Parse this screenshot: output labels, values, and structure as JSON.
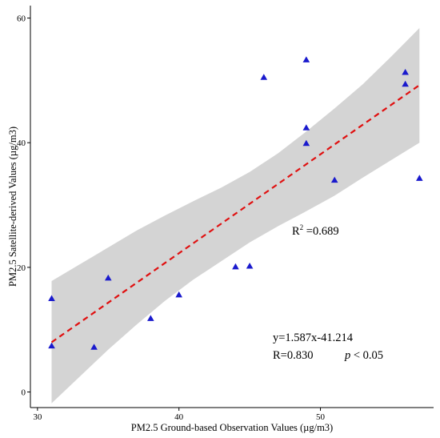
{
  "chart_data": {
    "type": "scatter",
    "xlabel": "PM2.5 Ground-based Observation Values (µg/m3)",
    "ylabel": "PM2.5 Satellite-derived Values (µg/m3)",
    "xlim": [
      29.5,
      58
    ],
    "ylim": [
      -2.5,
      62
    ],
    "xticks": [
      30,
      40,
      50
    ],
    "yticks": [
      0,
      20,
      40,
      60
    ],
    "grid": false,
    "marker": "triangle",
    "colors": {
      "points": "#1a1acd",
      "fit_line": "#e01010",
      "ci_band": "#d4d4d4"
    },
    "points": [
      {
        "x": 31,
        "y": 7.4
      },
      {
        "x": 31,
        "y": 15.0
      },
      {
        "x": 34,
        "y": 7.2
      },
      {
        "x": 35,
        "y": 18.3
      },
      {
        "x": 38,
        "y": 11.8
      },
      {
        "x": 40,
        "y": 15.6
      },
      {
        "x": 44,
        "y": 20.1
      },
      {
        "x": 45,
        "y": 20.2
      },
      {
        "x": 46,
        "y": 50.5
      },
      {
        "x": 49,
        "y": 53.3
      },
      {
        "x": 49,
        "y": 42.4
      },
      {
        "x": 49,
        "y": 39.9
      },
      {
        "x": 51,
        "y": 34.0
      },
      {
        "x": 56,
        "y": 51.3
      },
      {
        "x": 56,
        "y": 49.4
      },
      {
        "x": 57,
        "y": 34.3
      }
    ],
    "fit": {
      "slope": 1.587,
      "intercept": -41.214,
      "x_range": [
        31,
        57
      ]
    },
    "ci_band": {
      "x": [
        31,
        33,
        35,
        37,
        39,
        41,
        43,
        45,
        47,
        49,
        51,
        53,
        55,
        57
      ],
      "upper": [
        17.8,
        20.5,
        23.2,
        25.9,
        28.3,
        30.6,
        32.8,
        35.3,
        38.3,
        41.8,
        45.5,
        49.4,
        53.8,
        58.4
      ],
      "lower": [
        -1.8,
        2.5,
        6.8,
        10.8,
        14.6,
        18.0,
        21.0,
        24.0,
        26.6,
        29.0,
        31.5,
        34.4,
        37.2,
        40.0
      ]
    },
    "annotations": {
      "r2_label": "R",
      "r2_sup": "2",
      "r2_value": " =0.689",
      "equation": "y=1.587x-41.214",
      "r_value": "R=0.830",
      "p_italic": "p",
      "p_value": " < 0.05"
    }
  }
}
